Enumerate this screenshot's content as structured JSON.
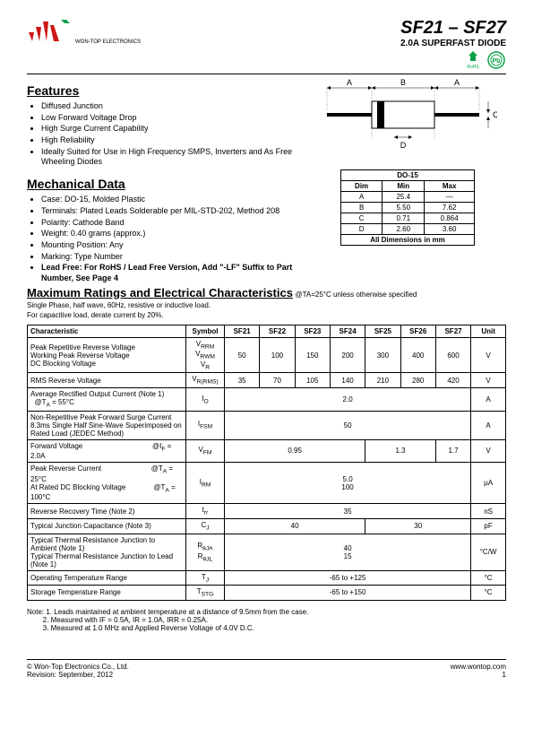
{
  "header": {
    "company": "WON-TOP ELECTRONICS",
    "part_title": "SF21 – SF27",
    "subtitle": "2.0A SUPERFAST DIODE",
    "rohs_label": "RoHS",
    "pb_label": "Pb"
  },
  "features": {
    "heading": "Features",
    "items": [
      "Diffused Junction",
      "Low Forward Voltage Drop",
      "High Surge Current Capability",
      "High Reliability",
      "Ideally Suited for Use in High Frequency SMPS, Inverters and As Free Wheeling Diodes"
    ]
  },
  "mechanical": {
    "heading": "Mechanical Data",
    "items": [
      "Case: DO-15, Molded Plastic",
      "Terminals: Plated Leads Solderable per MIL-STD-202, Method 208",
      "Polarity: Cathode Band",
      "Weight: 0.40 grams (approx.)",
      "Mounting Position: Any",
      "Marking: Type Number"
    ],
    "lead_free": "Lead Free: For RoHS / Lead Free Version, Add \"-LF\" Suffix to Part Number, See Page 4"
  },
  "diagram": {
    "labels": {
      "A": "A",
      "B": "B",
      "C": "C",
      "D": "D"
    }
  },
  "dim_table": {
    "title": "DO-15",
    "headers": [
      "Dim",
      "Min",
      "Max"
    ],
    "rows": [
      [
        "A",
        "25.4",
        "—"
      ],
      [
        "B",
        "5.50",
        "7.62"
      ],
      [
        "C",
        "0.71",
        "0.864"
      ],
      [
        "D",
        "2.60",
        "3.60"
      ]
    ],
    "footer": "All Dimensions in mm"
  },
  "ratings": {
    "heading": "Maximum Ratings and Electrical Characteristics",
    "condition": "@TA=25°C unless otherwise specified",
    "note1": "Single Phase, half wave, 60Hz, resistive or inductive load.",
    "note2": "For capacitive load, derate current by 20%.",
    "headers": [
      "Characteristic",
      "Symbol",
      "SF21",
      "SF22",
      "SF23",
      "SF24",
      "SF25",
      "SF26",
      "SF27",
      "Unit"
    ],
    "rows": [
      {
        "char": "Peak Repetitive Reverse Voltage<br>Working Peak Reverse Voltage<br>DC Blocking Voltage",
        "sym": "V<sub>RRM</sub><br>V<sub>RWM</sub><br>V<sub>R</sub>",
        "vals": [
          "50",
          "100",
          "150",
          "200",
          "300",
          "400",
          "600"
        ],
        "unit": "V"
      },
      {
        "char": "RMS Reverse Voltage",
        "sym": "V<sub>R(RMS)</sub>",
        "vals": [
          "35",
          "70",
          "105",
          "140",
          "210",
          "280",
          "420"
        ],
        "unit": "V"
      },
      {
        "char": "Average Rectified Output Current (Note 1) &nbsp;&nbsp;@T<sub>A</sub> = 55°C",
        "sym": "I<sub>O</sub>",
        "span": "2.0",
        "unit": "A"
      },
      {
        "char": "Non-Repetitive Peak Forward Surge Current<br>8.3ms Single Half Sine-Wave Superimposed on Rated Load (JEDEC Method)",
        "sym": "I<sub>FSM</sub>",
        "span": "50",
        "unit": "A"
      },
      {
        "char": "Forward Voltage &nbsp;&nbsp;&nbsp;&nbsp;&nbsp;&nbsp;&nbsp;&nbsp;&nbsp;&nbsp;&nbsp;&nbsp;&nbsp;&nbsp;&nbsp;&nbsp;&nbsp;&nbsp;&nbsp;&nbsp;&nbsp;&nbsp;&nbsp;&nbsp;&nbsp;&nbsp;&nbsp;&nbsp;&nbsp;&nbsp;&nbsp;&nbsp;&nbsp;&nbsp;@I<sub>F</sub> = 2.0A",
        "sym": "V<sub>FM</sub>",
        "spans": [
          {
            "v": "0.95",
            "c": 4
          },
          {
            "v": "1.3",
            "c": 2
          },
          {
            "v": "1.7",
            "c": 1
          }
        ],
        "unit": "V"
      },
      {
        "char": "Peak Reverse Current &nbsp;&nbsp;&nbsp;&nbsp;&nbsp;&nbsp;&nbsp;&nbsp;&nbsp;&nbsp;&nbsp;&nbsp;&nbsp;&nbsp;&nbsp;&nbsp;&nbsp;&nbsp;&nbsp;&nbsp;&nbsp;&nbsp;&nbsp;&nbsp;@T<sub>A</sub> = 25°C<br>At Rated DC Blocking Voltage &nbsp;&nbsp;&nbsp;&nbsp;&nbsp;&nbsp;&nbsp;&nbsp;&nbsp;&nbsp;&nbsp;&nbsp;&nbsp;@T<sub>A</sub> = 100°C",
        "sym": "I<sub>RM</sub>",
        "span": "5.0<br>100",
        "unit": "μA"
      },
      {
        "char": "Reverse Recovery Time (Note 2)",
        "sym": "t<sub>rr</sub>",
        "span": "35",
        "unit": "nS"
      },
      {
        "char": "Typical Junction Capacitance (Note 3)",
        "sym": "C<sub>J</sub>",
        "spans": [
          {
            "v": "40",
            "c": 4
          },
          {
            "v": "30",
            "c": 3
          }
        ],
        "unit": "pF"
      },
      {
        "char": "Typical Thermal Resistance Junction to Ambient (Note 1)<br>Typical Thermal Resistance Junction to Lead (Note 1)",
        "sym": "R<sub>θJA</sub><br>R<sub>θJL</sub>",
        "span": "40<br>15",
        "unit": "°C/W"
      },
      {
        "char": "Operating Temperature Range",
        "sym": "T<sub>J</sub>",
        "span": "-65 to +125",
        "unit": "°C"
      },
      {
        "char": "Storage Temperature Range",
        "sym": "T<sub>STG</sub>",
        "span": "-65 to +150",
        "unit": "°C"
      }
    ]
  },
  "notes": {
    "prefix": "Note:",
    "items": [
      "1. Leads maintained at ambient temperature at a distance of 9.5mm from the case.",
      "2. Measured with IF = 0.5A, IR = 1.0A, IRR = 0.25A.",
      "3. Measured at 1.0 MHz and Applied Reverse Voltage of 4.0V D.C."
    ]
  },
  "footer": {
    "company": "© Won-Top Electronics Co., Ltd.",
    "revision": "Revision: September, 2012",
    "url": "www.wontop.com",
    "page": "1"
  }
}
